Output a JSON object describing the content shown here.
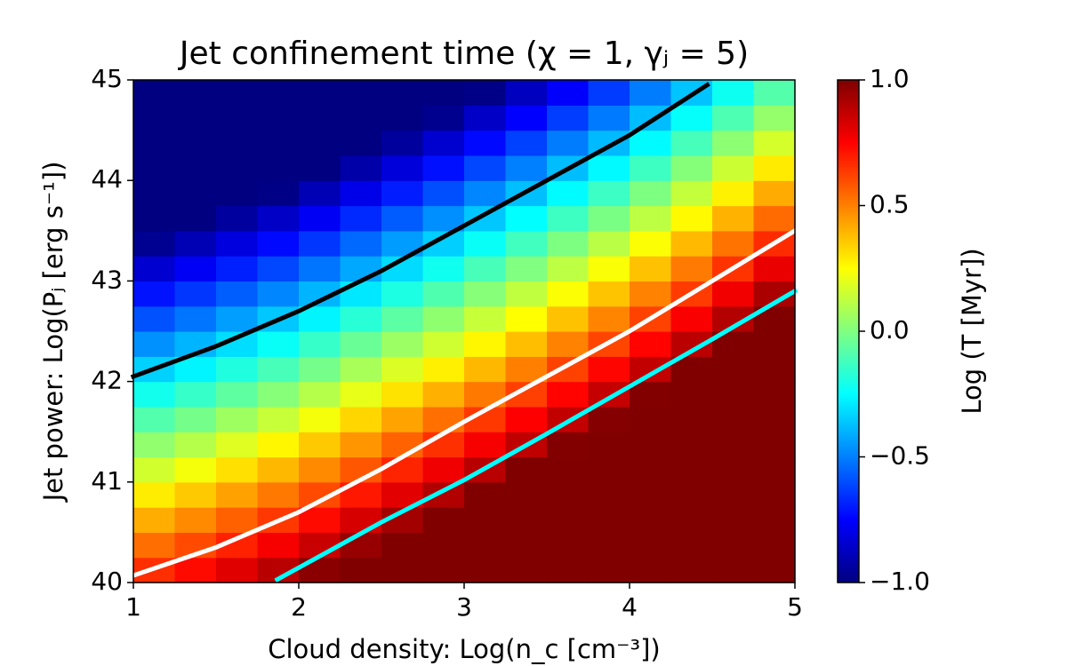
{
  "chart_data": {
    "type": "heatmap",
    "title": "Jet confinement time (χ = 1, γⱼ = 5)",
    "x_label": "Cloud density: Log(n_c [cm⁻³])",
    "y_label": "Jet power: Log(Pⱼ [erg s⁻¹])",
    "colorbar_label": "Log (T [Myr])",
    "colormap": "jet",
    "xlim": [
      1,
      5
    ],
    "ylim": [
      40,
      45
    ],
    "xticks": [
      1,
      2,
      3,
      4,
      5
    ],
    "yticks": [
      40,
      41,
      42,
      43,
      44,
      45
    ],
    "clim": [
      -1,
      1
    ],
    "cticks": [
      {
        "value": -1,
        "label": "−1.0"
      },
      {
        "value": -0.5,
        "label": "−0.5"
      },
      {
        "value": 0,
        "label": "0.0"
      },
      0.5,
      {
        "value": 1,
        "label": "1.0"
      }
    ],
    "x": [
      1.125,
      1.375,
      1.625,
      1.875,
      2.125,
      2.375,
      2.625,
      2.875,
      3.125,
      3.375,
      3.625,
      3.875,
      4.125,
      4.375,
      4.625,
      4.875
    ],
    "y": [
      40.125,
      40.375,
      40.625,
      40.875,
      41.125,
      41.375,
      41.625,
      41.875,
      42.125,
      42.375,
      42.625,
      42.875,
      43.125,
      43.375,
      43.625,
      43.875,
      44.125,
      44.375,
      44.625,
      44.875
    ],
    "z": [
      [
        0.66,
        0.73,
        0.81,
        0.89,
        0.98,
        1.08,
        1.18,
        1.28,
        1.39,
        1.5,
        1.62,
        1.74,
        1.87,
        2.01,
        2.15,
        2.29
      ],
      [
        0.535,
        0.605,
        0.685,
        0.765,
        0.855,
        0.955,
        1.055,
        1.155,
        1.265,
        1.375,
        1.495,
        1.615,
        1.745,
        1.885,
        2.025,
        2.165
      ],
      [
        0.41,
        0.48,
        0.56,
        0.64,
        0.73,
        0.83,
        0.93,
        1.03,
        1.14,
        1.25,
        1.37,
        1.49,
        1.62,
        1.76,
        1.9,
        2.04
      ],
      [
        0.285,
        0.355,
        0.435,
        0.515,
        0.605,
        0.705,
        0.805,
        0.905,
        1.015,
        1.125,
        1.245,
        1.365,
        1.495,
        1.635,
        1.775,
        1.915
      ],
      [
        0.16,
        0.23,
        0.31,
        0.39,
        0.48,
        0.58,
        0.68,
        0.78,
        0.89,
        1.0,
        1.12,
        1.24,
        1.37,
        1.51,
        1.65,
        1.79
      ],
      [
        0.035,
        0.105,
        0.185,
        0.265,
        0.355,
        0.455,
        0.555,
        0.655,
        0.765,
        0.875,
        0.995,
        1.115,
        1.245,
        1.385,
        1.525,
        1.665
      ],
      [
        -0.09,
        -0.02,
        0.06,
        0.14,
        0.23,
        0.33,
        0.43,
        0.53,
        0.64,
        0.75,
        0.87,
        0.99,
        1.12,
        1.26,
        1.4,
        1.54
      ],
      [
        -0.215,
        -0.145,
        -0.065,
        0.015,
        0.105,
        0.205,
        0.305,
        0.405,
        0.515,
        0.625,
        0.745,
        0.865,
        0.995,
        1.135,
        1.275,
        1.415
      ],
      [
        -0.34,
        -0.27,
        -0.19,
        -0.11,
        -0.02,
        0.08,
        0.18,
        0.28,
        0.39,
        0.5,
        0.62,
        0.74,
        0.87,
        1.01,
        1.15,
        1.29
      ],
      [
        -0.465,
        -0.395,
        -0.315,
        -0.235,
        -0.145,
        -0.045,
        0.055,
        0.155,
        0.265,
        0.375,
        0.495,
        0.615,
        0.745,
        0.885,
        1.025,
        1.165
      ],
      [
        -0.59,
        -0.52,
        -0.44,
        -0.36,
        -0.27,
        -0.17,
        -0.07,
        0.03,
        0.14,
        0.25,
        0.37,
        0.49,
        0.62,
        0.76,
        0.9,
        1.04
      ],
      [
        -0.715,
        -0.645,
        -0.565,
        -0.485,
        -0.395,
        -0.295,
        -0.195,
        -0.095,
        0.015,
        0.125,
        0.245,
        0.365,
        0.495,
        0.635,
        0.775,
        0.915
      ],
      [
        -0.84,
        -0.77,
        -0.69,
        -0.61,
        -0.52,
        -0.42,
        -0.32,
        -0.22,
        -0.11,
        0,
        0.12,
        0.24,
        0.37,
        0.51,
        0.65,
        0.79
      ],
      [
        -0.965,
        -0.895,
        -0.815,
        -0.735,
        -0.645,
        -0.545,
        -0.445,
        -0.345,
        -0.235,
        -0.125,
        -0.005,
        0.115,
        0.245,
        0.385,
        0.525,
        0.665
      ],
      [
        -1.09,
        -1.02,
        -0.94,
        -0.86,
        -0.77,
        -0.67,
        -0.57,
        -0.47,
        -0.36,
        -0.25,
        -0.13,
        -0.01,
        0.12,
        0.26,
        0.4,
        0.54
      ],
      [
        -1.215,
        -1.145,
        -1.065,
        -0.985,
        -0.895,
        -0.795,
        -0.695,
        -0.595,
        -0.485,
        -0.375,
        -0.255,
        -0.135,
        -0.005,
        0.135,
        0.275,
        0.415
      ],
      [
        -1.34,
        -1.27,
        -1.19,
        -1.11,
        -1.02,
        -0.92,
        -0.82,
        -0.72,
        -0.61,
        -0.5,
        -0.38,
        -0.26,
        -0.13,
        0.01,
        0.15,
        0.29
      ],
      [
        -1.465,
        -1.395,
        -1.315,
        -1.235,
        -1.145,
        -1.045,
        -0.945,
        -0.845,
        -0.735,
        -0.625,
        -0.505,
        -0.385,
        -0.255,
        -0.115,
        0.025,
        0.165
      ],
      [
        -1.59,
        -1.52,
        -1.44,
        -1.36,
        -1.27,
        -1.17,
        -1.07,
        -0.97,
        -0.86,
        -0.75,
        -0.63,
        -0.51,
        -0.38,
        -0.24,
        -0.1,
        0.04
      ],
      [
        -1.715,
        -1.645,
        -1.565,
        -1.485,
        -1.395,
        -1.295,
        -1.195,
        -1.095,
        -0.985,
        -0.875,
        -0.755,
        -0.635,
        -0.505,
        -0.365,
        -0.225,
        -0.085
      ]
    ],
    "series": [
      {
        "color": "#000000",
        "x": [
          1,
          1.5,
          2,
          2.5,
          3,
          3.5,
          4,
          4.47
        ],
        "values": [
          42.05,
          42.35,
          42.7,
          43.1,
          43.55,
          44.0,
          44.45,
          44.95
        ]
      },
      {
        "color": "#ffffff",
        "x": [
          1,
          1.5,
          2,
          2.5,
          3,
          3.5,
          4,
          4.5,
          5
        ],
        "values": [
          40.07,
          40.35,
          40.7,
          41.13,
          41.6,
          42.05,
          42.5,
          43.0,
          43.5
        ]
      },
      {
        "color": "#00ffff",
        "x": [
          1.87,
          2.5,
          3,
          3.5,
          4,
          4.5,
          5
        ],
        "values": [
          40.03,
          40.6,
          41.02,
          41.48,
          41.95,
          42.42,
          42.9
        ]
      }
    ]
  }
}
